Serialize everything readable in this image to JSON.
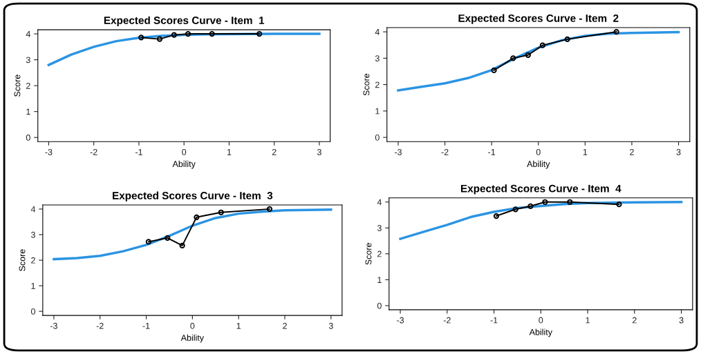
{
  "chart_data": [
    {
      "type": "line",
      "title": "Expected Scores Curve - Item  1",
      "xlabel": "Ability",
      "ylabel": "Score",
      "xlim": [
        -3.24,
        3.24
      ],
      "ylim": [
        -0.16,
        4.16
      ],
      "xticks": [
        -3,
        -2,
        -1,
        0,
        1,
        2,
        3
      ],
      "yticks": [
        0,
        1,
        2,
        3,
        4
      ],
      "grid": false,
      "series": [
        {
          "color": "#2b94e3",
          "marker": "none",
          "x": [
            -3,
            -2.5,
            -2,
            -1.5,
            -1,
            -0.5,
            0,
            0.5,
            1,
            2,
            3
          ],
          "values": [
            2.8,
            3.2,
            3.5,
            3.72,
            3.85,
            3.92,
            3.96,
            3.98,
            3.99,
            4.0,
            4.0
          ]
        },
        {
          "color": "#000000",
          "marker": "circle",
          "x": [
            -0.95,
            -0.54,
            -0.22,
            0.09,
            0.62,
            1.67
          ],
          "values": [
            3.86,
            3.8,
            3.96,
            4.0,
            4.0,
            4.0
          ]
        }
      ]
    },
    {
      "type": "line",
      "title": "Expected Scores Curve - Item  2",
      "xlabel": "Ability",
      "ylabel": "Score",
      "xlim": [
        -3.24,
        3.24
      ],
      "ylim": [
        -0.16,
        4.16
      ],
      "xticks": [
        -3,
        -2,
        -1,
        0,
        1,
        2,
        3
      ],
      "yticks": [
        0,
        1,
        2,
        3,
        4
      ],
      "grid": false,
      "series": [
        {
          "color": "#2b94e3",
          "marker": "none",
          "x": [
            -3,
            -2.5,
            -2,
            -1.5,
            -1,
            -0.5,
            0,
            0.5,
            1,
            1.5,
            2,
            3
          ],
          "values": [
            1.78,
            1.92,
            2.05,
            2.25,
            2.55,
            3.0,
            3.4,
            3.68,
            3.85,
            3.93,
            3.96,
            3.99
          ]
        },
        {
          "color": "#000000",
          "marker": "circle",
          "x": [
            -0.95,
            -0.54,
            -0.22,
            0.09,
            0.62,
            1.67
          ],
          "values": [
            2.54,
            3.0,
            3.12,
            3.49,
            3.72,
            4.0
          ]
        }
      ]
    },
    {
      "type": "line",
      "title": "Expected Scores Curve - Item  3",
      "xlabel": "Ability",
      "ylabel": "Score",
      "xlim": [
        -3.24,
        3.24
      ],
      "ylim": [
        -0.16,
        4.16
      ],
      "xticks": [
        -3,
        -2,
        -1,
        0,
        1,
        2,
        3
      ],
      "yticks": [
        0,
        1,
        2,
        3,
        4
      ],
      "grid": false,
      "series": [
        {
          "color": "#2b94e3",
          "marker": "none",
          "x": [
            -3,
            -2.5,
            -2,
            -1.5,
            -1,
            -0.5,
            0,
            0.5,
            1,
            1.5,
            2,
            3
          ],
          "values": [
            2.04,
            2.08,
            2.17,
            2.35,
            2.6,
            2.95,
            3.35,
            3.65,
            3.82,
            3.9,
            3.95,
            3.98
          ]
        },
        {
          "color": "#000000",
          "marker": "circle",
          "x": [
            -0.95,
            -0.54,
            -0.22,
            0.09,
            0.62,
            1.67
          ],
          "values": [
            2.72,
            2.87,
            2.57,
            3.68,
            3.87,
            4.0
          ]
        }
      ]
    },
    {
      "type": "line",
      "title": "Expected Scores Curve - Item  4",
      "xlabel": "Ability",
      "ylabel": "Score",
      "xlim": [
        -3.24,
        3.24
      ],
      "ylim": [
        -0.16,
        4.16
      ],
      "xticks": [
        -3,
        -2,
        -1,
        0,
        1,
        2,
        3
      ],
      "yticks": [
        0,
        1,
        2,
        3,
        4
      ],
      "grid": false,
      "series": [
        {
          "color": "#2b94e3",
          "marker": "none",
          "x": [
            -3,
            -2.5,
            -2,
            -1.5,
            -1,
            -0.5,
            0,
            0.5,
            1,
            2,
            3
          ],
          "values": [
            2.58,
            2.85,
            3.12,
            3.42,
            3.62,
            3.77,
            3.85,
            3.92,
            3.96,
            3.99,
            4.0
          ]
        },
        {
          "color": "#000000",
          "marker": "circle",
          "x": [
            -0.95,
            -0.54,
            -0.22,
            0.09,
            0.62,
            1.67
          ],
          "values": [
            3.46,
            3.72,
            3.84,
            4.0,
            4.0,
            3.91
          ]
        }
      ]
    }
  ]
}
